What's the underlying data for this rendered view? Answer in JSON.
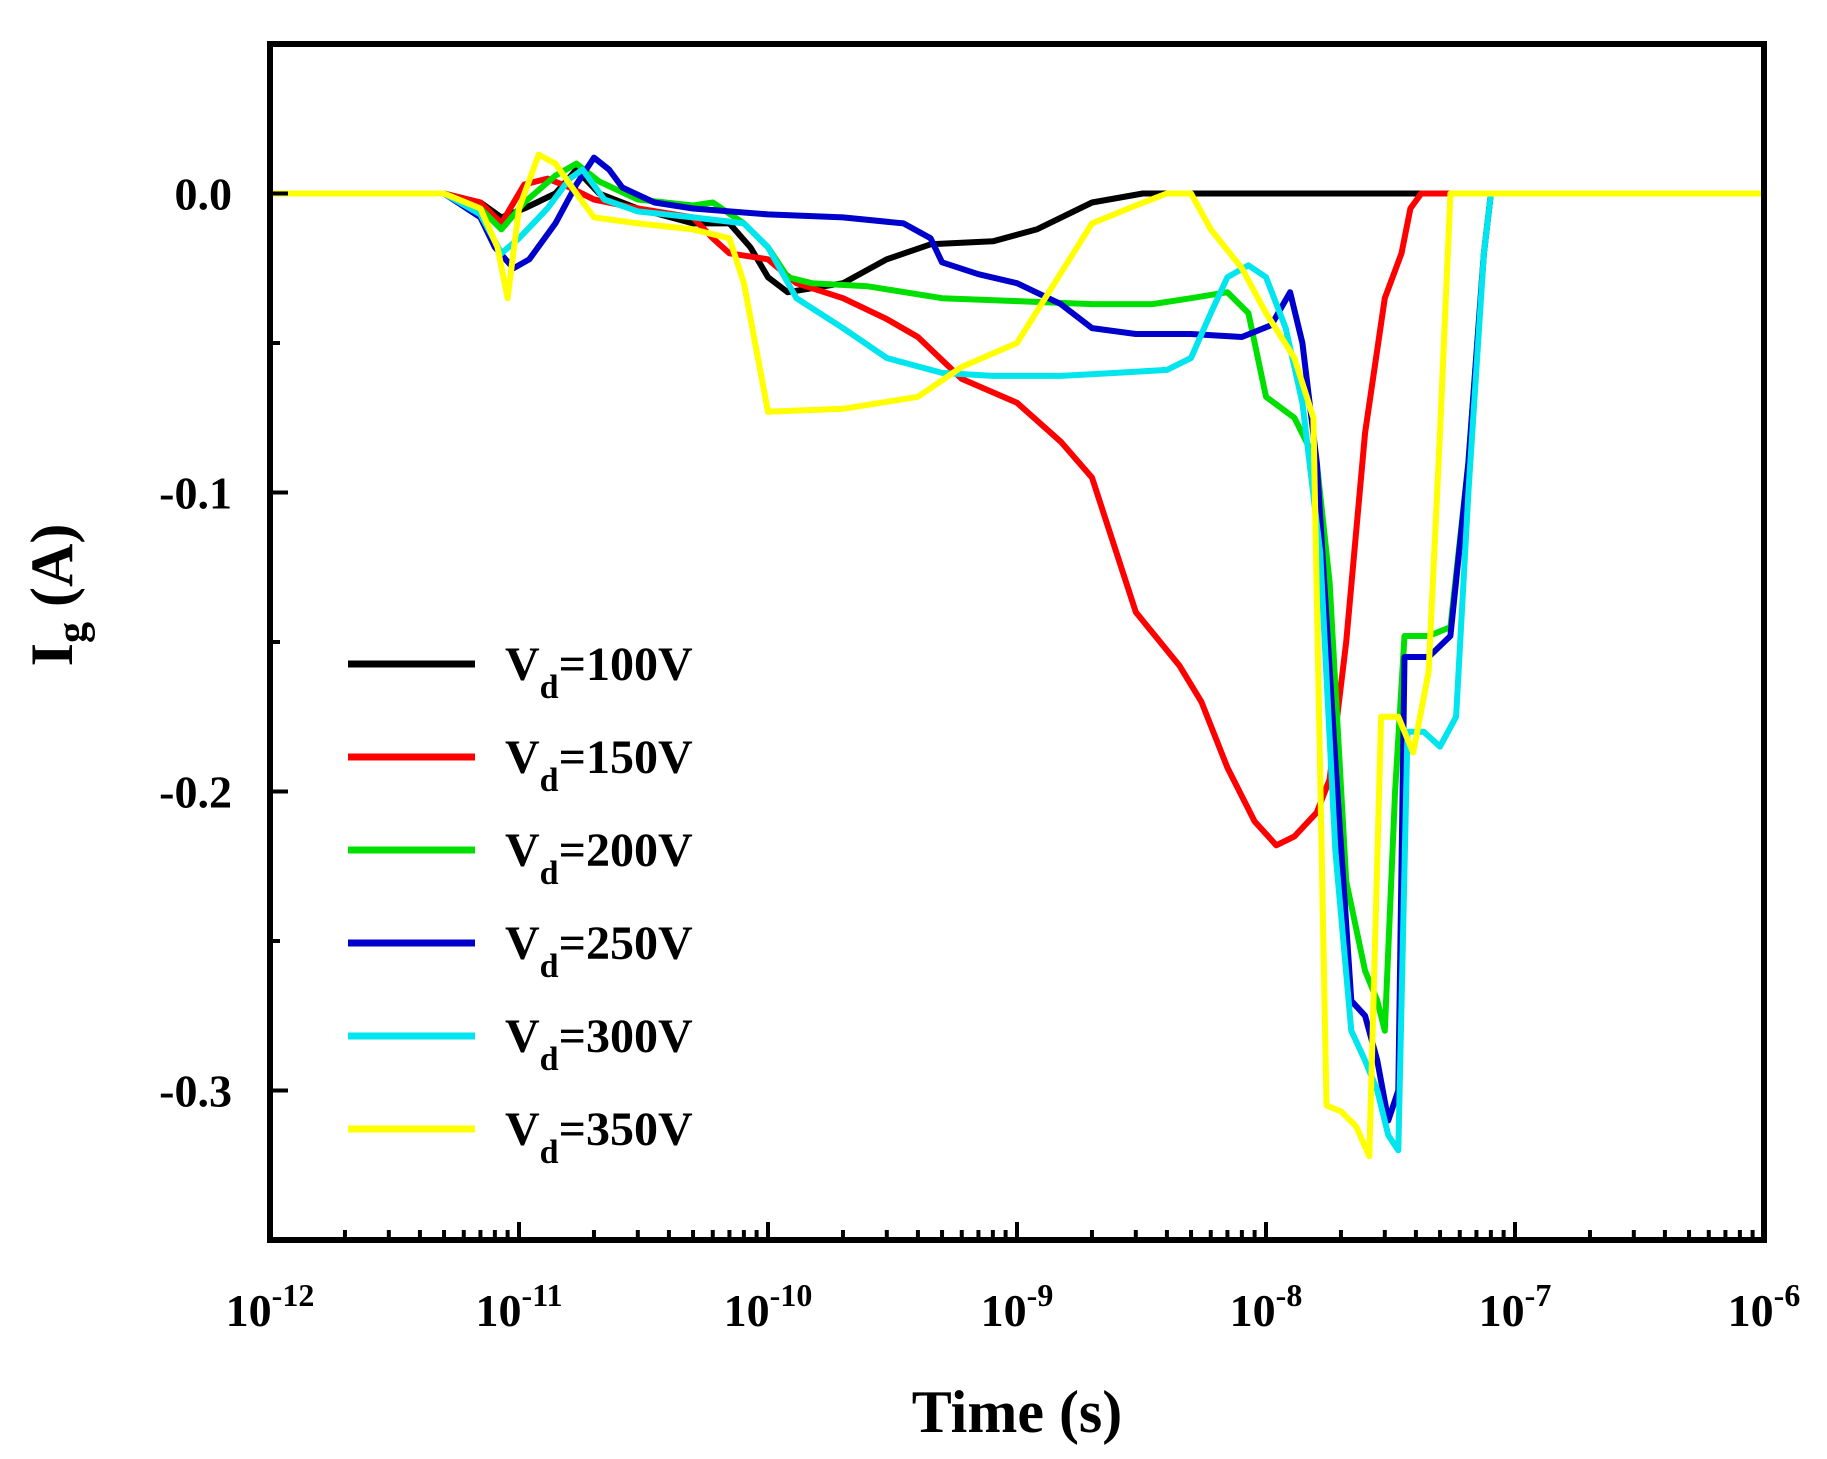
{
  "chart_data": {
    "type": "line",
    "title": "",
    "xlabel": "Time (s)",
    "ylabel_main": "I",
    "ylabel_sub": "g",
    "ylabel_unit": " (A)",
    "x_scale": "log",
    "xlim": [
      1e-12,
      1e-06
    ],
    "ylim": [
      -0.35,
      0.05
    ],
    "x_ticks": [
      {
        "value": 1e-12,
        "base": "10",
        "exp": "-12"
      },
      {
        "value": 1e-11,
        "base": "10",
        "exp": "-11"
      },
      {
        "value": 1e-10,
        "base": "10",
        "exp": "-10"
      },
      {
        "value": 1e-09,
        "base": "10",
        "exp": "-9"
      },
      {
        "value": 1e-08,
        "base": "10",
        "exp": "-8"
      },
      {
        "value": 1e-07,
        "base": "10",
        "exp": "-7"
      },
      {
        "value": 1e-06,
        "base": "10",
        "exp": "-6"
      }
    ],
    "y_ticks": [
      {
        "value": 0.0,
        "label": "0.0"
      },
      {
        "value": -0.1,
        "label": "-0.1"
      },
      {
        "value": -0.2,
        "label": "-0.2"
      },
      {
        "value": -0.3,
        "label": "-0.3"
      }
    ],
    "legend_position": "left",
    "series": [
      {
        "name": "100V",
        "label_main": "V",
        "label_sub": "d",
        "label_rest": "=100V",
        "color": "#000000",
        "points": [
          [
            1e-12,
            0
          ],
          [
            5e-12,
            0
          ],
          [
            7e-12,
            -0.003
          ],
          [
            8.5e-12,
            -0.008
          ],
          [
            1.05e-11,
            -0.005
          ],
          [
            1.4e-11,
            0.0
          ],
          [
            1.7e-11,
            0.008
          ],
          [
            2.1e-11,
            0.0
          ],
          [
            3e-11,
            -0.005
          ],
          [
            5e-11,
            -0.01
          ],
          [
            7e-11,
            -0.01
          ],
          [
            8.5e-11,
            -0.018
          ],
          [
            1e-10,
            -0.028
          ],
          [
            1.2e-10,
            -0.033
          ],
          [
            2e-10,
            -0.03
          ],
          [
            3e-10,
            -0.022
          ],
          [
            4.5e-10,
            -0.017
          ],
          [
            8e-10,
            -0.016
          ],
          [
            1.2e-09,
            -0.012
          ],
          [
            2e-09,
            -0.003
          ],
          [
            3.2e-09,
            0
          ],
          [
            1e-06,
            0
          ]
        ]
      },
      {
        "name": "150V",
        "label_main": "V",
        "label_sub": "d",
        "label_rest": "=150V",
        "color": "#ff0000",
        "points": [
          [
            1e-12,
            0
          ],
          [
            5e-12,
            0
          ],
          [
            7e-12,
            -0.003
          ],
          [
            8.5e-12,
            -0.01
          ],
          [
            1.05e-11,
            0.003
          ],
          [
            1.3e-11,
            0.005
          ],
          [
            1.6e-11,
            0.002
          ],
          [
            2e-11,
            -0.002
          ],
          [
            3e-11,
            -0.005
          ],
          [
            5e-11,
            -0.008
          ],
          [
            6e-11,
            -0.015
          ],
          [
            7e-11,
            -0.02
          ],
          [
            1e-10,
            -0.022
          ],
          [
            1.3e-10,
            -0.03
          ],
          [
            2e-10,
            -0.035
          ],
          [
            3e-10,
            -0.042
          ],
          [
            4e-10,
            -0.048
          ],
          [
            6e-10,
            -0.062
          ],
          [
            1e-09,
            -0.07
          ],
          [
            1.5e-09,
            -0.083
          ],
          [
            2e-09,
            -0.095
          ],
          [
            3e-09,
            -0.14
          ],
          [
            4.5e-09,
            -0.158
          ],
          [
            5.5e-09,
            -0.17
          ],
          [
            7e-09,
            -0.192
          ],
          [
            9e-09,
            -0.21
          ],
          [
            1.1e-08,
            -0.218
          ],
          [
            1.3e-08,
            -0.215
          ],
          [
            1.6e-08,
            -0.207
          ],
          [
            1.8e-08,
            -0.196
          ],
          [
            2.1e-08,
            -0.15
          ],
          [
            2.5e-08,
            -0.08
          ],
          [
            3e-08,
            -0.035
          ],
          [
            3.5e-08,
            -0.02
          ],
          [
            3.8e-08,
            -0.005
          ],
          [
            4.2e-08,
            0
          ],
          [
            1e-06,
            0
          ]
        ]
      },
      {
        "name": "200V",
        "label_main": "V",
        "label_sub": "d",
        "label_rest": "=200V",
        "color": "#00e000",
        "points": [
          [
            1e-12,
            0
          ],
          [
            5e-12,
            0
          ],
          [
            7e-12,
            -0.005
          ],
          [
            8.5e-12,
            -0.012
          ],
          [
            1.05e-11,
            -0.003
          ],
          [
            1.4e-11,
            0.006
          ],
          [
            1.7e-11,
            0.01
          ],
          [
            2.1e-11,
            0.004
          ],
          [
            3e-11,
            -0.002
          ],
          [
            5e-11,
            -0.004
          ],
          [
            6e-11,
            -0.003
          ],
          [
            8e-11,
            -0.01
          ],
          [
            1e-10,
            -0.018
          ],
          [
            1.2e-10,
            -0.028
          ],
          [
            1.5e-10,
            -0.03
          ],
          [
            2.5e-10,
            -0.031
          ],
          [
            5e-10,
            -0.035
          ],
          [
            1e-09,
            -0.036
          ],
          [
            2e-09,
            -0.037
          ],
          [
            3.5e-09,
            -0.037
          ],
          [
            5e-09,
            -0.035
          ],
          [
            7e-09,
            -0.033
          ],
          [
            8.5e-09,
            -0.04
          ],
          [
            1e-08,
            -0.068
          ],
          [
            1.3e-08,
            -0.075
          ],
          [
            1.6e-08,
            -0.09
          ],
          [
            1.8e-08,
            -0.13
          ],
          [
            2.1e-08,
            -0.23
          ],
          [
            2.5e-08,
            -0.26
          ],
          [
            2.8e-08,
            -0.27
          ],
          [
            3e-08,
            -0.28
          ],
          [
            3.3e-08,
            -0.2
          ],
          [
            3.6e-08,
            -0.148
          ],
          [
            4.5e-08,
            -0.148
          ],
          [
            5.5e-08,
            -0.145
          ],
          [
            6.5e-08,
            -0.09
          ],
          [
            7.5e-08,
            -0.02
          ],
          [
            8e-08,
            0
          ],
          [
            1e-06,
            0
          ]
        ]
      },
      {
        "name": "250V",
        "label_main": "V",
        "label_sub": "d",
        "label_rest": "=250V",
        "color": "#0000cc",
        "points": [
          [
            1e-12,
            0
          ],
          [
            5e-12,
            0
          ],
          [
            7e-12,
            -0.008
          ],
          [
            8e-12,
            -0.018
          ],
          [
            9.5e-12,
            -0.025
          ],
          [
            1.1e-11,
            -0.022
          ],
          [
            1.4e-11,
            -0.01
          ],
          [
            1.7e-11,
            0.003
          ],
          [
            2e-11,
            0.012
          ],
          [
            2.3e-11,
            0.008
          ],
          [
            2.6e-11,
            0.002
          ],
          [
            3.5e-11,
            -0.003
          ],
          [
            5e-11,
            -0.005
          ],
          [
            7e-11,
            -0.006
          ],
          [
            1e-10,
            -0.007
          ],
          [
            2e-10,
            -0.008
          ],
          [
            3.5e-10,
            -0.01
          ],
          [
            4.5e-10,
            -0.015
          ],
          [
            5e-10,
            -0.023
          ],
          [
            7e-10,
            -0.027
          ],
          [
            1e-09,
            -0.03
          ],
          [
            1.5e-09,
            -0.037
          ],
          [
            2e-09,
            -0.045
          ],
          [
            3e-09,
            -0.047
          ],
          [
            5e-09,
            -0.047
          ],
          [
            8e-09,
            -0.048
          ],
          [
            1.05e-08,
            -0.044
          ],
          [
            1.25e-08,
            -0.033
          ],
          [
            1.4e-08,
            -0.05
          ],
          [
            1.6e-08,
            -0.09
          ],
          [
            1.9e-08,
            -0.19
          ],
          [
            2.2e-08,
            -0.27
          ],
          [
            2.5e-08,
            -0.275
          ],
          [
            2.8e-08,
            -0.29
          ],
          [
            3.1e-08,
            -0.31
          ],
          [
            3.4e-08,
            -0.3
          ],
          [
            3.6e-08,
            -0.155
          ],
          [
            4.5e-08,
            -0.155
          ],
          [
            5.5e-08,
            -0.148
          ],
          [
            6.5e-08,
            -0.09
          ],
          [
            7.5e-08,
            -0.02
          ],
          [
            8e-08,
            0
          ],
          [
            1e-06,
            0
          ]
        ]
      },
      {
        "name": "300V",
        "label_main": "V",
        "label_sub": "d",
        "label_rest": "=300V",
        "color": "#00e5ee",
        "points": [
          [
            1e-12,
            0
          ],
          [
            5e-12,
            0
          ],
          [
            7e-12,
            -0.007
          ],
          [
            8.5e-12,
            -0.02
          ],
          [
            1e-11,
            -0.015
          ],
          [
            1.3e-11,
            -0.005
          ],
          [
            1.6e-11,
            0.005
          ],
          [
            1.8e-11,
            0.008
          ],
          [
            2.2e-11,
            -0.002
          ],
          [
            3e-11,
            -0.006
          ],
          [
            5e-11,
            -0.008
          ],
          [
            8e-11,
            -0.01
          ],
          [
            1e-10,
            -0.018
          ],
          [
            1.3e-10,
            -0.035
          ],
          [
            2e-10,
            -0.045
          ],
          [
            3e-10,
            -0.055
          ],
          [
            5e-10,
            -0.06
          ],
          [
            8e-10,
            -0.061
          ],
          [
            1.5e-09,
            -0.061
          ],
          [
            2.5e-09,
            -0.06
          ],
          [
            4e-09,
            -0.059
          ],
          [
            5e-09,
            -0.055
          ],
          [
            6e-09,
            -0.04
          ],
          [
            7e-09,
            -0.028
          ],
          [
            8.5e-09,
            -0.024
          ],
          [
            1e-08,
            -0.028
          ],
          [
            1.2e-08,
            -0.045
          ],
          [
            1.4e-08,
            -0.07
          ],
          [
            1.65e-08,
            -0.12
          ],
          [
            1.9e-08,
            -0.22
          ],
          [
            2.2e-08,
            -0.28
          ],
          [
            2.5e-08,
            -0.29
          ],
          [
            2.8e-08,
            -0.3
          ],
          [
            3.1e-08,
            -0.315
          ],
          [
            3.4e-08,
            -0.32
          ],
          [
            3.7e-08,
            -0.18
          ],
          [
            4.3e-08,
            -0.18
          ],
          [
            5e-08,
            -0.185
          ],
          [
            5.8e-08,
            -0.175
          ],
          [
            6.5e-08,
            -0.1
          ],
          [
            7.5e-08,
            -0.02
          ],
          [
            8e-08,
            0
          ],
          [
            1e-06,
            0
          ]
        ]
      },
      {
        "name": "350V",
        "label_main": "V",
        "label_sub": "d",
        "label_rest": "=350V",
        "color": "#ffff00",
        "points": [
          [
            1e-12,
            0
          ],
          [
            5e-12,
            0
          ],
          [
            7e-12,
            -0.005
          ],
          [
            8.2e-12,
            -0.018
          ],
          [
            9e-12,
            -0.035
          ],
          [
            1e-11,
            -0.005
          ],
          [
            1.2e-11,
            0.013
          ],
          [
            1.4e-11,
            0.01
          ],
          [
            1.7e-11,
            0.0
          ],
          [
            2e-11,
            -0.008
          ],
          [
            3e-11,
            -0.01
          ],
          [
            5e-11,
            -0.012
          ],
          [
            7e-11,
            -0.015
          ],
          [
            8e-11,
            -0.03
          ],
          [
            1e-10,
            -0.073
          ],
          [
            2e-10,
            -0.072
          ],
          [
            4e-10,
            -0.068
          ],
          [
            6e-10,
            -0.058
          ],
          [
            1e-09,
            -0.05
          ],
          [
            2e-09,
            -0.01
          ],
          [
            3e-09,
            -0.004
          ],
          [
            4e-09,
            0
          ],
          [
            5e-09,
            0
          ],
          [
            6e-09,
            -0.012
          ],
          [
            8e-09,
            -0.025
          ],
          [
            1e-08,
            -0.04
          ],
          [
            1.3e-08,
            -0.055
          ],
          [
            1.55e-08,
            -0.075
          ],
          [
            1.75e-08,
            -0.305
          ],
          [
            2e-08,
            -0.307
          ],
          [
            2.3e-08,
            -0.312
          ],
          [
            2.6e-08,
            -0.322
          ],
          [
            2.9e-08,
            -0.175
          ],
          [
            3.4e-08,
            -0.175
          ],
          [
            3.9e-08,
            -0.187
          ],
          [
            4.5e-08,
            -0.16
          ],
          [
            5e-08,
            -0.08
          ],
          [
            5.5e-08,
            0
          ],
          [
            1e-06,
            0
          ]
        ]
      }
    ]
  }
}
